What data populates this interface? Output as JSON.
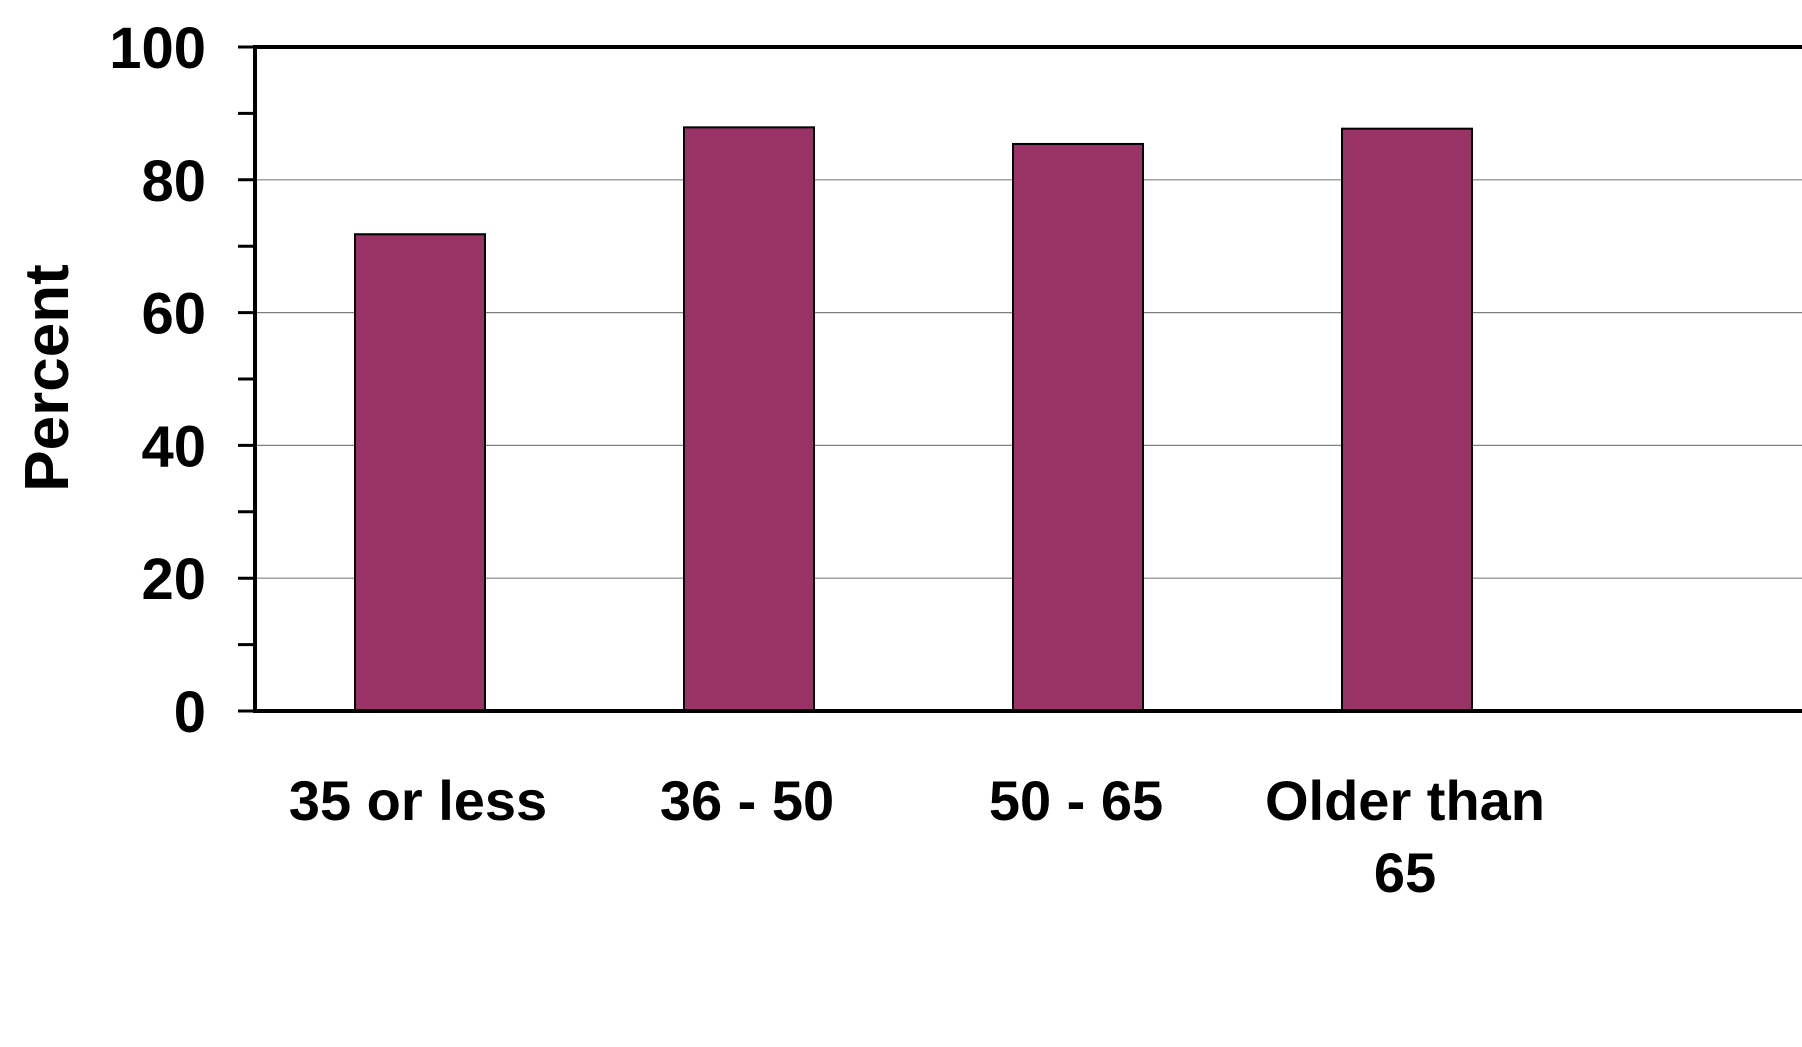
{
  "chart_data": {
    "type": "bar",
    "title": "",
    "xlabel": "",
    "ylabel": "Percent",
    "categories": [
      [
        "35 or less"
      ],
      [
        "36 - 50"
      ],
      [
        "50 - 65"
      ],
      [
        "Older than",
        "65"
      ]
    ],
    "values": [
      71.8,
      87.9,
      85.4,
      87.7
    ],
    "ylim": [
      0,
      100
    ],
    "yticks": [
      0,
      20,
      40,
      60,
      80,
      100
    ],
    "y_minor_step": 10,
    "grid": true,
    "legend": "none",
    "bar_color": "#993366",
    "bar_edge_color": "#000000",
    "grid_color": "#808080",
    "axis_color": "#000000"
  }
}
